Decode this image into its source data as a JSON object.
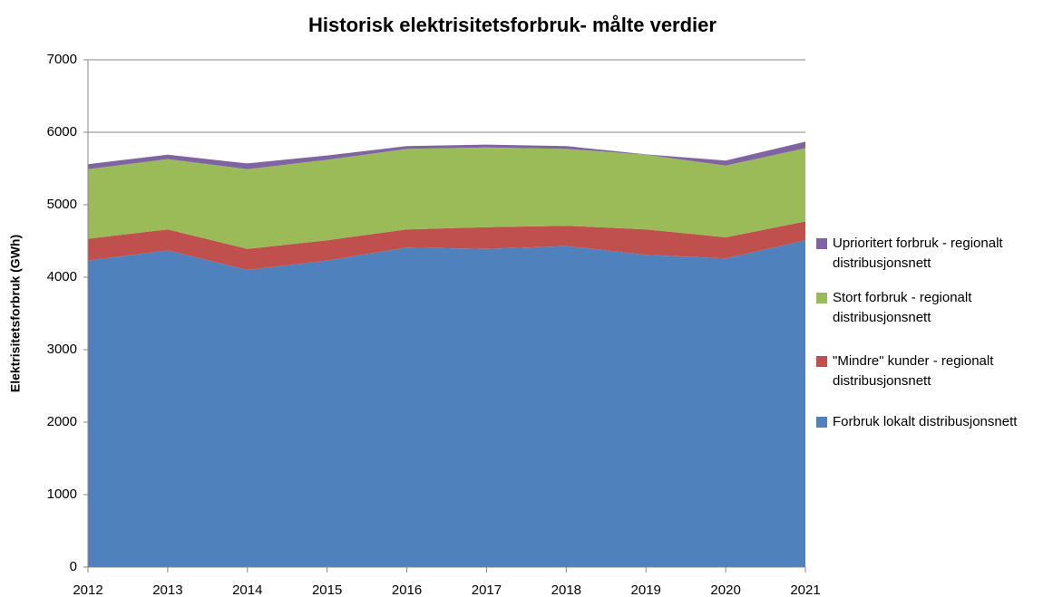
{
  "chart_data": {
    "type": "stacked_area",
    "title": "Historisk elektrisitetsforbruk- målte verdier",
    "y_label": "Elektrisitetsforbruk (GWh)",
    "x": [
      2012,
      2013,
      2014,
      2015,
      2016,
      2017,
      2018,
      2019,
      2020,
      2021
    ],
    "xlim": [
      2012,
      2021
    ],
    "xticks": [
      2012,
      2013,
      2014,
      2015,
      2016,
      2017,
      2018,
      2019,
      2020,
      2021
    ],
    "ylim": [
      0,
      7000
    ],
    "yticks": [
      0,
      1000,
      2000,
      3000,
      4000,
      5000,
      6000,
      7000
    ],
    "grid": true,
    "legend": "right",
    "series": [
      {
        "name": "Forbruk lokalt distribusjonsnett",
        "color": "#4f81bd",
        "values": [
          4230,
          4370,
          4100,
          4230,
          4410,
          4390,
          4430,
          4310,
          4260,
          4510
        ]
      },
      {
        "name": "\"Mindre\" kunder - regionalt distribusjonsnett",
        "color": "#c0504d",
        "values": [
          300,
          290,
          290,
          280,
          250,
          300,
          280,
          350,
          290,
          260
        ]
      },
      {
        "name": "Stort forbruk - regionalt distribusjonsnett",
        "color": "#9bbb59",
        "values": [
          960,
          970,
          1100,
          1110,
          1110,
          1100,
          1060,
          1030,
          990,
          1010
        ]
      },
      {
        "name": "Uprioritert forbruk - regionalt distribusjonsnett",
        "color": "#8064a2",
        "values": [
          70,
          60,
          80,
          60,
          40,
          40,
          40,
          5,
          70,
          90
        ]
      }
    ]
  }
}
